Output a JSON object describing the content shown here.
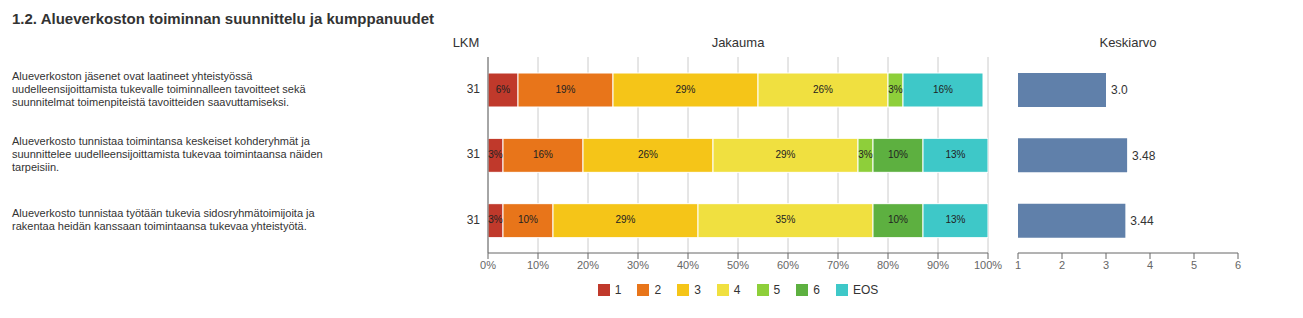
{
  "chart_data": [
    {
      "type": "bar",
      "title": "1.2. Alueverkoston toiminnan suunnittelu ja kumppanuudet",
      "subtitle": "Jakauma",
      "orientation": "horizontal",
      "stacked": true,
      "grid": true,
      "legend": "bottom",
      "data_labels": true,
      "categories": [
        "Alueverkoston jäsenet ovat laatineet yhteistyössä\nuudelleensijoittamista tukevalle toiminnalleen tavoitteet sekä\nsuunnitelmat toimenpiteistä tavoitteiden saavuttamiseksi.",
        "Alueverkosto tunnistaa toimintansa keskeiset kohderyhmät ja\nsuunnittelee uudelleensijoittamista tukevaa toimintaansa näiden\ntarpeisiin.",
        "Alueverkosto tunnistaa työtään tukevia sidosryhmätoimijoita ja\nrakentaa heidän kanssaan toimintaansa tukevaa yhteistyötä."
      ],
      "counts_label": "LKM",
      "counts": [
        31,
        31,
        31
      ],
      "series": [
        {
          "name": "1",
          "color": "#c0392b",
          "values": [
            6,
            3,
            3
          ],
          "value_labels": [
            "6%",
            "3%",
            "3%"
          ]
        },
        {
          "name": "2",
          "color": "#e8751a",
          "values": [
            19,
            16,
            10
          ],
          "value_labels": [
            "19%",
            "16%",
            "10%"
          ]
        },
        {
          "name": "3",
          "color": "#f5c518",
          "values": [
            29,
            26,
            29
          ],
          "value_labels": [
            "29%",
            "26%",
            "29%"
          ]
        },
        {
          "name": "4",
          "color": "#f0e040",
          "values": [
            26,
            29,
            35
          ],
          "value_labels": [
            "26%",
            "29%",
            "35%"
          ]
        },
        {
          "name": "5",
          "color": "#8ecf3a",
          "values": [
            3,
            3,
            0
          ],
          "value_labels": [
            "3%",
            "3%",
            null
          ]
        },
        {
          "name": "6",
          "color": "#5db040",
          "values": [
            0,
            10,
            10
          ],
          "value_labels": [
            null,
            "10%",
            "10%"
          ]
        },
        {
          "name": "EOS",
          "color": "#3ec8c8",
          "values": [
            16,
            13,
            13
          ],
          "value_labels": [
            "16%",
            "13%",
            "13%"
          ]
        }
      ],
      "xlim": [
        0,
        100
      ],
      "xticks": [
        {
          "value": 0,
          "label": "0%"
        },
        {
          "value": 10,
          "label": "10%"
        },
        {
          "value": 20,
          "label": "20%"
        },
        {
          "value": 30,
          "label": "30%"
        },
        {
          "value": 40,
          "label": "40%"
        },
        {
          "value": 50,
          "label": "50%"
        },
        {
          "value": 60,
          "label": "60%"
        },
        {
          "value": 70,
          "label": "70%"
        },
        {
          "value": 80,
          "label": "80%"
        },
        {
          "value": 90,
          "label": "90%"
        },
        {
          "value": 100,
          "label": "100%"
        }
      ]
    },
    {
      "type": "bar",
      "title": "Keskiarvo",
      "orientation": "horizontal",
      "color": "#6080aa",
      "data_labels": true,
      "values": [
        3.0,
        3.48,
        3.44
      ],
      "value_labels": [
        "3.0",
        "3.48",
        "3.44"
      ],
      "xlim": [
        1,
        6
      ],
      "xticks": [
        1,
        2,
        3,
        4,
        5,
        6
      ]
    }
  ]
}
